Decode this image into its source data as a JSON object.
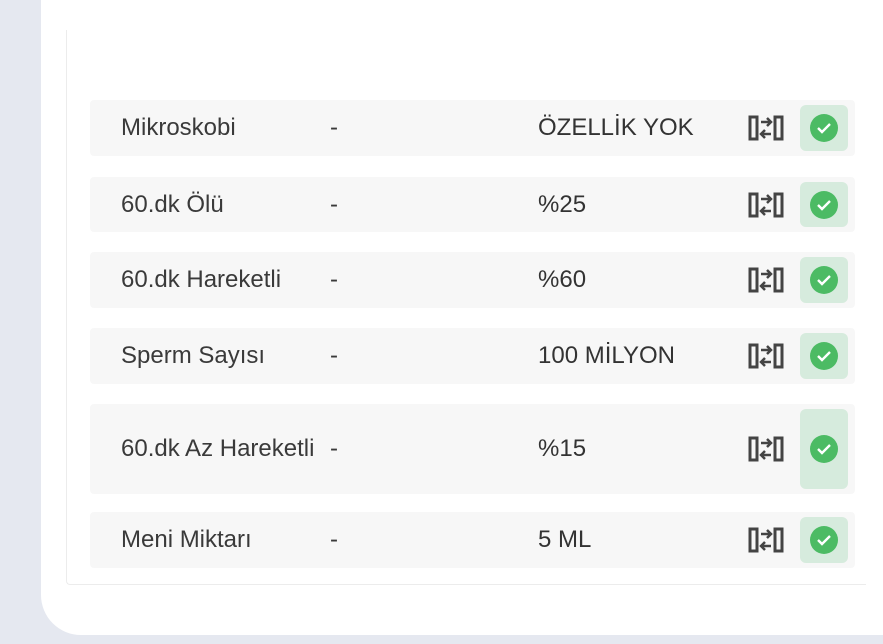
{
  "colors": {
    "accent": "#4cbb64",
    "check_bg": "#d6ebdd",
    "row_bg": "#f7f7f7"
  },
  "rows": [
    {
      "name": "Mikroskobi",
      "ref": "-",
      "value": "ÖZELLİK YOK",
      "icons": [
        "swap-icon",
        "check-icon"
      ]
    },
    {
      "name": "60.dk Ölü",
      "ref": "-",
      "value": "%25",
      "icons": [
        "swap-icon",
        "check-icon"
      ]
    },
    {
      "name": "60.dk Hareketli",
      "ref": "-",
      "value": "%60",
      "icons": [
        "swap-icon",
        "check-icon"
      ]
    },
    {
      "name": "Sperm Sayısı",
      "ref": "-",
      "value": "100 MİLYON",
      "icons": [
        "swap-icon",
        "check-icon"
      ]
    },
    {
      "name": "60.dk Az Hareketli",
      "ref": "-",
      "value": "%15",
      "icons": [
        "swap-icon",
        "check-icon"
      ]
    },
    {
      "name": "Meni Miktarı",
      "ref": "-",
      "value": "5 ML",
      "icons": [
        "swap-icon",
        "check-icon"
      ]
    }
  ]
}
